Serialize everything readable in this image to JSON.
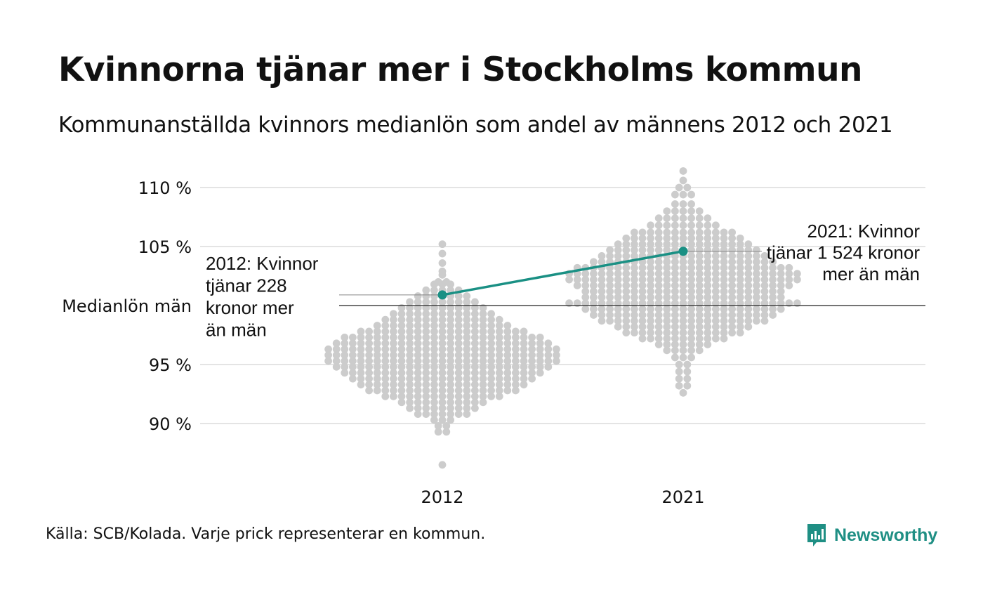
{
  "title": "Kvinnorna tjänar mer i Stockholms kommun",
  "subtitle": "Kommunanställda kvinnors medianlön som andel av männens 2012 och 2021",
  "source": "Källa: SCB/Kolada. Varje prick representerar en kommun.",
  "brand": {
    "name": "Newsworthy",
    "icon": "newsworthy-logo-icon",
    "color": "#1f8f84"
  },
  "chart_data": {
    "type": "scatter",
    "subtype": "beeswarm",
    "title": "Kvinnorna tjänar mer i Stockholms kommun",
    "subtitle": "Kommunanställda kvinnors medianlön som andel av männens 2012 och 2021",
    "categories": [
      "2012",
      "2021"
    ],
    "y_unit": "%",
    "ylim": [
      86,
      111.5
    ],
    "y_ticks": [
      {
        "value": 110,
        "label": "110 %"
      },
      {
        "value": 105,
        "label": "105 %"
      },
      {
        "value": 95,
        "label": "95 %"
      },
      {
        "value": 90,
        "label": "90 %"
      }
    ],
    "reference_line": {
      "value": 100,
      "label": "Medianlön män"
    },
    "grid": true,
    "colors": {
      "dots": "#cccccc",
      "highlight": "#1a9084",
      "grid": "#e4e4e4",
      "reference": "#222222"
    },
    "series": [
      {
        "category": "2012",
        "summary": {
          "n_approx": 290,
          "min": 86.5,
          "max": 105.2,
          "median": 95.5
        },
        "dots_by_y": [
          [
            105.2,
            1
          ],
          [
            104.4,
            1
          ],
          [
            103.6,
            1
          ],
          [
            102.9,
            1
          ],
          [
            102.6,
            1
          ],
          [
            102.0,
            2
          ],
          [
            101.8,
            3
          ],
          [
            101.3,
            5
          ],
          [
            100.8,
            7
          ],
          [
            100.3,
            9
          ],
          [
            99.8,
            11
          ],
          [
            99.3,
            13
          ],
          [
            98.8,
            15
          ],
          [
            98.3,
            17
          ],
          [
            97.8,
            21
          ],
          [
            97.3,
            25
          ],
          [
            96.8,
            27
          ],
          [
            96.3,
            29
          ],
          [
            95.8,
            29
          ],
          [
            95.3,
            29
          ],
          [
            94.8,
            27
          ],
          [
            94.3,
            25
          ],
          [
            93.8,
            23
          ],
          [
            93.3,
            21
          ],
          [
            92.8,
            19
          ],
          [
            92.3,
            15
          ],
          [
            91.8,
            11
          ],
          [
            91.3,
            9
          ],
          [
            90.8,
            7
          ],
          [
            90.3,
            3
          ],
          [
            89.8,
            2
          ],
          [
            89.3,
            2
          ],
          [
            86.5,
            1
          ]
        ],
        "highlight": {
          "name": "Stockholm",
          "value": 100.9,
          "label": "2012: Kvinnor\ntjänar 228\nkronor mer\nän män",
          "label_lines": [
            "2012: Kvinnor",
            "tjänar 228",
            "kronor mer",
            "än män"
          ]
        }
      },
      {
        "category": "2021",
        "summary": {
          "n_approx": 290,
          "min": 92.6,
          "max": 111.4,
          "median": 100.5
        },
        "dots_by_y": [
          [
            111.4,
            1
          ],
          [
            110.6,
            1
          ],
          [
            110.0,
            2
          ],
          [
            109.4,
            3
          ],
          [
            108.6,
            3
          ],
          [
            108.0,
            5
          ],
          [
            107.4,
            7
          ],
          [
            106.8,
            9
          ],
          [
            106.2,
            13
          ],
          [
            105.7,
            15
          ],
          [
            105.2,
            17
          ],
          [
            104.7,
            19
          ],
          [
            104.2,
            21
          ],
          [
            103.7,
            23
          ],
          [
            103.2,
            27
          ],
          [
            102.7,
            29
          ],
          [
            102.2,
            29
          ],
          [
            101.7,
            27
          ],
          [
            101.2,
            25
          ],
          [
            100.7,
            25
          ],
          [
            100.2,
            29
          ],
          [
            99.7,
            25
          ],
          [
            99.2,
            23
          ],
          [
            98.7,
            21
          ],
          [
            98.2,
            17
          ],
          [
            97.7,
            15
          ],
          [
            97.2,
            11
          ],
          [
            96.7,
            7
          ],
          [
            96.2,
            5
          ],
          [
            95.6,
            3
          ],
          [
            95.0,
            2
          ],
          [
            94.4,
            2
          ],
          [
            93.8,
            2
          ],
          [
            93.2,
            2
          ],
          [
            92.6,
            1
          ]
        ],
        "highlight": {
          "name": "Stockholm",
          "value": 104.6,
          "label": "2021: Kvinnor\ntjänar 1 524 kronor\nmer än män",
          "label_lines": [
            "2021: Kvinnor",
            "tjänar 1 524 kronor",
            "mer än män"
          ]
        }
      }
    ]
  }
}
